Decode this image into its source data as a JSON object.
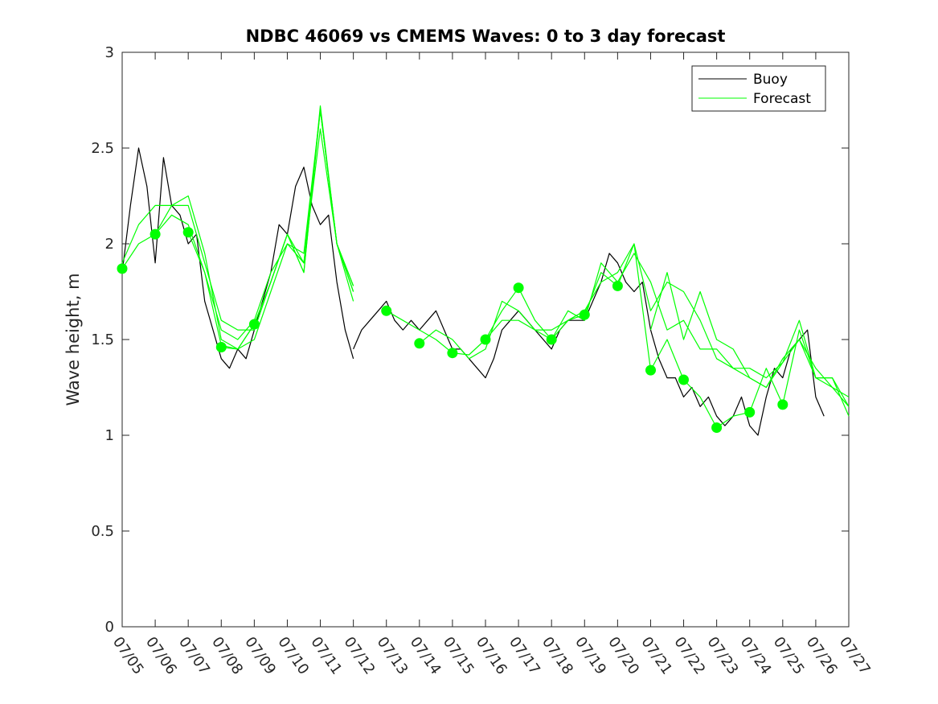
{
  "chart_data": {
    "type": "line",
    "title": "NDBC 46069 vs CMEMS Waves: 0 to 3 day forecast",
    "xlabel": "",
    "ylabel": "Wave height, m",
    "ylim": [
      0,
      3
    ],
    "yticks": [
      0,
      0.5,
      1,
      1.5,
      2,
      2.5,
      3
    ],
    "ytick_labels": [
      "0",
      "0.5",
      "1",
      "1.5",
      "2",
      "2.5",
      "3"
    ],
    "xlim": [
      0,
      22
    ],
    "xticks": [
      0,
      1,
      2,
      3,
      4,
      5,
      6,
      7,
      8,
      9,
      10,
      11,
      12,
      13,
      14,
      15,
      16,
      17,
      18,
      19,
      20,
      21,
      22
    ],
    "xtick_labels": [
      "07/05",
      "07/06",
      "07/07",
      "07/08",
      "07/09",
      "07/10",
      "07/11",
      "07/12",
      "07/13",
      "07/14",
      "07/15",
      "07/16",
      "07/17",
      "07/18",
      "07/19",
      "07/20",
      "07/21",
      "07/22",
      "07/23",
      "07/24",
      "07/25",
      "07/26",
      "07/27"
    ],
    "x_unit": "days from 07/05 00:00",
    "legend": {
      "placement": "top-right",
      "entries": [
        {
          "label": "Buoy",
          "color": "#000000"
        },
        {
          "label": "Forecast",
          "color": "#00ff00"
        }
      ]
    },
    "grid": false,
    "series": [
      {
        "name": "Buoy",
        "color": "#000000",
        "x": [
          0,
          0.25,
          0.5,
          0.75,
          1,
          1.25,
          1.5,
          1.75,
          2,
          2.25,
          2.5,
          2.75,
          3,
          3.25,
          3.5,
          3.75,
          4,
          4.25,
          4.5,
          4.75,
          5,
          5.25,
          5.5,
          5.75,
          6,
          6.25,
          6.5,
          6.75,
          7
        ],
        "y": [
          1.85,
          2.2,
          2.5,
          2.3,
          1.9,
          2.45,
          2.2,
          2.15,
          2.0,
          2.05,
          1.7,
          1.55,
          1.4,
          1.35,
          1.45,
          1.4,
          1.55,
          1.7,
          1.85,
          2.1,
          2.05,
          2.3,
          2.4,
          2.2,
          2.1,
          2.15,
          1.8,
          1.55,
          1.4
        ]
      },
      {
        "name": "Buoy",
        "color": "#000000",
        "x": [
          7,
          7.25,
          7.5,
          7.75,
          8,
          8.25,
          8.5,
          8.75,
          9,
          9.25,
          9.5,
          9.75,
          10,
          10.25,
          10.5,
          10.75,
          11,
          11.25,
          11.5,
          11.75,
          12,
          12.25,
          12.5,
          12.75,
          13,
          13.25,
          13.5,
          13.75,
          14,
          14.25,
          14.5,
          14.75,
          15,
          15.25,
          15.5,
          15.75,
          16,
          16.25,
          16.5,
          16.75,
          17,
          17.25,
          17.5,
          17.75,
          18,
          18.25,
          18.5,
          18.75,
          19,
          19.25,
          19.5,
          19.75,
          20,
          20.25,
          20.5,
          20.75,
          21,
          21.25
        ],
        "y": [
          1.45,
          1.55,
          1.6,
          1.65,
          1.7,
          1.6,
          1.55,
          1.6,
          1.55,
          1.6,
          1.65,
          1.55,
          1.45,
          1.45,
          1.4,
          1.35,
          1.3,
          1.4,
          1.55,
          1.6,
          1.65,
          1.6,
          1.55,
          1.5,
          1.45,
          1.55,
          1.6,
          1.6,
          1.6,
          1.7,
          1.8,
          1.95,
          1.9,
          1.8,
          1.75,
          1.8,
          1.55,
          1.4,
          1.3,
          1.3,
          1.2,
          1.25,
          1.15,
          1.2,
          1.1,
          1.05,
          1.1,
          1.2,
          1.05,
          1.0,
          1.2,
          1.35,
          1.3,
          1.45,
          1.5,
          1.55,
          1.2,
          1.1
        ]
      },
      {
        "name": "Forecast",
        "color": "#00ff00",
        "x": [
          0,
          0.5,
          1,
          1.5,
          2,
          2.5,
          3,
          3.5,
          4,
          4.5,
          5,
          5.5,
          6,
          6.5,
          7
        ],
        "y": [
          1.87,
          2.0,
          2.05,
          2.15,
          2.1,
          1.85,
          1.55,
          1.5,
          1.6,
          1.85,
          2.0,
          1.95,
          2.7,
          2.0,
          1.75
        ]
      },
      {
        "name": "Forecast",
        "color": "#00ff00",
        "x": [
          0,
          0.5,
          1,
          1.5,
          2,
          2.5,
          3,
          3.5,
          4,
          4.5,
          5,
          5.5,
          6,
          6.5,
          7
        ],
        "y": [
          1.9,
          2.1,
          2.2,
          2.2,
          2.2,
          1.9,
          1.6,
          1.55,
          1.55,
          1.8,
          2.05,
          1.9,
          2.6,
          2.0,
          1.7
        ]
      },
      {
        "name": "Forecast",
        "color": "#00ff00",
        "x": [
          1,
          1.5,
          2,
          2.5,
          3,
          3.5,
          4,
          4.5,
          5,
          5.5,
          6,
          6.5,
          7
        ],
        "y": [
          2.05,
          2.2,
          2.25,
          1.95,
          1.5,
          1.45,
          1.5,
          1.75,
          2.0,
          1.9,
          2.7,
          2.0,
          1.75
        ]
      },
      {
        "name": "Forecast",
        "color": "#00ff00",
        "x": [
          2,
          2.5,
          3,
          3.5,
          4,
          4.5,
          5,
          5.5,
          6,
          6.5,
          7
        ],
        "y": [
          2.06,
          1.85,
          1.47,
          1.45,
          1.58,
          1.8,
          2.05,
          1.85,
          2.7,
          2.0,
          1.78
        ]
      },
      {
        "name": "Forecast",
        "color": "#00ff00",
        "x": [
          3,
          3.5,
          4,
          4.5,
          5,
          5.5,
          6,
          6.5,
          7
        ],
        "y": [
          1.46,
          1.45,
          1.58,
          1.8,
          2.05,
          1.85,
          2.72,
          2.0,
          1.78
        ]
      },
      {
        "name": "Forecast",
        "color": "#00ff00",
        "x": [
          8,
          8.5,
          9,
          9.5,
          10,
          10.5,
          11,
          11.5,
          12,
          12.5,
          13,
          13.5,
          14,
          14.5,
          15,
          15.5,
          16,
          16.5,
          17,
          17.5,
          18,
          18.5,
          19,
          19.5,
          20,
          20.5,
          21,
          21.5,
          22
        ],
        "y": [
          1.65,
          1.6,
          1.55,
          1.5,
          1.43,
          1.42,
          1.5,
          1.65,
          1.77,
          1.6,
          1.5,
          1.6,
          1.63,
          1.85,
          1.78,
          2.0,
          1.34,
          1.5,
          1.29,
          1.2,
          1.04,
          1.1,
          1.12,
          1.35,
          1.16,
          1.55,
          1.3,
          1.25,
          1.2
        ]
      },
      {
        "name": "Forecast",
        "color": "#00ff00",
        "x": [
          9,
          9.5,
          10,
          10.5,
          11,
          11.5,
          12,
          12.5,
          13,
          13.5,
          14,
          14.5,
          15,
          15.5,
          16,
          16.5,
          17,
          17.5,
          18,
          18.5,
          19,
          19.5,
          20,
          20.5,
          21,
          21.5,
          22
        ],
        "y": [
          1.48,
          1.55,
          1.5,
          1.4,
          1.45,
          1.7,
          1.65,
          1.55,
          1.5,
          1.65,
          1.6,
          1.9,
          1.8,
          1.95,
          1.8,
          1.55,
          1.6,
          1.45,
          1.45,
          1.35,
          1.3,
          1.25,
          1.4,
          1.5,
          1.35,
          1.25,
          1.15
        ]
      },
      {
        "name": "Forecast",
        "color": "#00ff00",
        "x": [
          11,
          11.5,
          12,
          12.5,
          13,
          13.5,
          14,
          14.5,
          15,
          15.5,
          16,
          16.5,
          17,
          17.5,
          18,
          18.5,
          19,
          19.5,
          20,
          20.5,
          21,
          21.5,
          22
        ],
        "y": [
          1.5,
          1.6,
          1.6,
          1.55,
          1.55,
          1.6,
          1.65,
          1.8,
          1.85,
          2.0,
          1.65,
          1.8,
          1.75,
          1.6,
          1.4,
          1.35,
          1.35,
          1.3,
          1.38,
          1.6,
          1.3,
          1.3,
          1.15
        ]
      },
      {
        "name": "Forecast",
        "color": "#00ff00",
        "x": [
          16,
          16.5,
          17,
          17.5,
          18,
          18.5,
          19,
          19.5,
          20,
          20.5,
          21,
          21.5,
          22
        ],
        "y": [
          1.55,
          1.85,
          1.5,
          1.75,
          1.5,
          1.45,
          1.3,
          1.25,
          1.38,
          1.5,
          1.3,
          1.3,
          1.1
        ]
      }
    ],
    "forecast_markers": {
      "color": "#00ff00",
      "x": [
        0,
        1,
        2,
        3,
        4,
        8,
        9,
        10,
        11,
        12,
        13,
        14,
        15,
        16,
        17,
        18,
        19,
        20
      ],
      "y": [
        1.87,
        2.05,
        2.06,
        1.46,
        1.58,
        1.65,
        1.48,
        1.43,
        1.5,
        1.77,
        1.5,
        1.63,
        1.78,
        1.34,
        1.29,
        1.04,
        1.12,
        1.16
      ]
    }
  }
}
